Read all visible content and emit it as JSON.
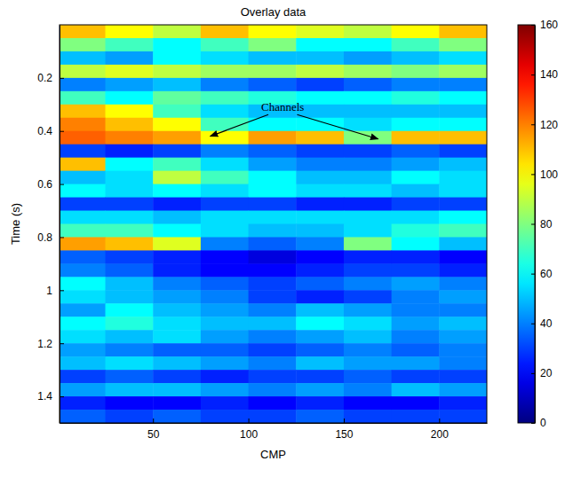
{
  "chart_data": {
    "type": "heatmap",
    "title": "Overlay data",
    "x_label": "CMP",
    "y_label": "Time (s)",
    "xlim": [
      1,
      225
    ],
    "xticks": [
      50,
      100,
      150,
      200
    ],
    "ylim": [
      0,
      1.5
    ],
    "yticks": [
      0.2,
      0.4,
      0.6,
      0.8,
      1,
      1.2,
      1.4
    ],
    "x_edges": [
      1,
      25,
      50,
      75,
      100,
      125,
      150,
      175,
      200,
      225
    ],
    "y_edges": [
      0,
      0.05,
      0.1,
      0.15,
      0.2,
      0.25,
      0.3,
      0.35,
      0.4,
      0.45,
      0.5,
      0.55,
      0.6,
      0.65,
      0.7,
      0.75,
      0.8,
      0.85,
      0.9,
      0.95,
      1,
      1.05,
      1.1,
      1.15,
      1.2,
      1.25,
      1.3,
      1.35,
      1.4,
      1.45,
      1.5
    ],
    "cells": [
      [
        110,
        100,
        90,
        110,
        100,
        95,
        90,
        100,
        110
      ],
      [
        80,
        70,
        60,
        70,
        80,
        60,
        60,
        70,
        80
      ],
      [
        50,
        45,
        60,
        55,
        50,
        50,
        45,
        50,
        55
      ],
      [
        90,
        95,
        90,
        85,
        85,
        90,
        85,
        80,
        85
      ],
      [
        40,
        45,
        50,
        40,
        35,
        30,
        35,
        40,
        40
      ],
      [
        70,
        60,
        75,
        70,
        65,
        60,
        60,
        65,
        60
      ],
      [
        110,
        100,
        70,
        55,
        50,
        50,
        50,
        50,
        50
      ],
      [
        120,
        110,
        100,
        70,
        60,
        60,
        55,
        60,
        60
      ],
      [
        125,
        120,
        115,
        100,
        115,
        110,
        80,
        110,
        110
      ],
      [
        30,
        25,
        30,
        40,
        35,
        30,
        30,
        35,
        30
      ],
      [
        110,
        60,
        70,
        55,
        45,
        40,
        40,
        45,
        50
      ],
      [
        50,
        55,
        90,
        70,
        60,
        50,
        50,
        60,
        55
      ],
      [
        60,
        55,
        60,
        55,
        60,
        55,
        55,
        50,
        55
      ],
      [
        30,
        30,
        25,
        30,
        30,
        25,
        25,
        30,
        30
      ],
      [
        55,
        55,
        50,
        55,
        55,
        55,
        55,
        55,
        60
      ],
      [
        70,
        70,
        60,
        55,
        50,
        50,
        55,
        65,
        70
      ],
      [
        115,
        110,
        95,
        40,
        35,
        40,
        80,
        60,
        50
      ],
      [
        35,
        30,
        25,
        20,
        15,
        20,
        25,
        25,
        20
      ],
      [
        40,
        35,
        25,
        20,
        20,
        25,
        30,
        30,
        25
      ],
      [
        60,
        50,
        40,
        35,
        30,
        35,
        40,
        45,
        40
      ],
      [
        55,
        50,
        45,
        40,
        30,
        25,
        30,
        40,
        45
      ],
      [
        45,
        60,
        50,
        45,
        40,
        50,
        45,
        40,
        40
      ],
      [
        60,
        65,
        55,
        50,
        50,
        60,
        55,
        45,
        50
      ],
      [
        55,
        50,
        55,
        45,
        40,
        45,
        50,
        40,
        45
      ],
      [
        45,
        40,
        35,
        35,
        30,
        35,
        40,
        35,
        40
      ],
      [
        50,
        55,
        50,
        45,
        40,
        50,
        45,
        45,
        40
      ],
      [
        30,
        35,
        30,
        25,
        30,
        30,
        35,
        30,
        30
      ],
      [
        45,
        50,
        50,
        45,
        40,
        45,
        40,
        50,
        45
      ],
      [
        25,
        20,
        20,
        25,
        20,
        25,
        20,
        20,
        25
      ],
      [
        35,
        30,
        35,
        30,
        30,
        35,
        30,
        30,
        30
      ]
    ],
    "colorbar": {
      "range": [
        0,
        160
      ],
      "ticks": [
        0,
        20,
        40,
        60,
        80,
        100,
        120,
        140,
        160
      ]
    },
    "annotations": [
      {
        "text": "Channels",
        "x": 118,
        "y": 0.325,
        "points": [
          [
            80,
            0.42
          ],
          [
            168,
            0.43
          ]
        ]
      }
    ]
  }
}
